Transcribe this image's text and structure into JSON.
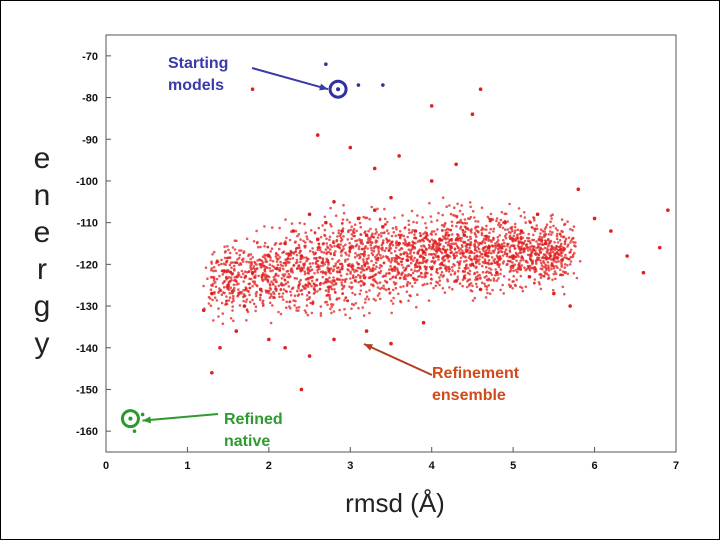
{
  "chart_data": {
    "type": "scatter",
    "xlabel": "rmsd (Å)",
    "ylabel_letters": [
      "e",
      "n",
      "e",
      "r",
      "g",
      "y"
    ],
    "xlim": [
      0,
      7
    ],
    "ylim": [
      -165,
      -65
    ],
    "xticks": [
      "0",
      "1",
      "2",
      "3",
      "4",
      "5",
      "6",
      "7"
    ],
    "yticks": [
      "-70",
      "-80",
      "-90",
      "-100",
      "-110",
      "-120",
      "-130",
      "-140",
      "-150",
      "-160"
    ],
    "grid": false,
    "series": [
      {
        "name": "Refinement ensemble",
        "color": "#e02020",
        "points": [
          [
            1.2,
            -131
          ],
          [
            1.3,
            -127
          ],
          [
            1.5,
            -125
          ],
          [
            1.6,
            -136
          ],
          [
            1.4,
            -140
          ],
          [
            1.7,
            -130
          ],
          [
            1.8,
            -122
          ],
          [
            1.9,
            -126
          ],
          [
            2.0,
            -118
          ],
          [
            2.1,
            -121
          ],
          [
            2.2,
            -115
          ],
          [
            2.3,
            -112
          ],
          [
            2.4,
            -118
          ],
          [
            2.5,
            -108
          ],
          [
            2.6,
            -114
          ],
          [
            2.7,
            -110
          ],
          [
            2.8,
            -105
          ],
          [
            2.9,
            -112
          ],
          [
            3.0,
            -116
          ],
          [
            3.1,
            -109
          ],
          [
            3.2,
            -113
          ],
          [
            3.3,
            -107
          ],
          [
            3.4,
            -111
          ],
          [
            3.5,
            -104
          ],
          [
            3.6,
            -115
          ],
          [
            3.7,
            -119
          ],
          [
            3.8,
            -112
          ],
          [
            3.9,
            -117
          ],
          [
            4.0,
            -121
          ],
          [
            4.1,
            -114
          ],
          [
            4.2,
            -118
          ],
          [
            4.3,
            -124
          ],
          [
            4.4,
            -113
          ],
          [
            4.5,
            -120
          ],
          [
            4.6,
            -126
          ],
          [
            4.7,
            -116
          ],
          [
            4.8,
            -122
          ],
          [
            4.9,
            -110
          ],
          [
            5.0,
            -118
          ],
          [
            5.1,
            -112
          ],
          [
            5.2,
            -123
          ],
          [
            5.3,
            -108
          ],
          [
            5.4,
            -115
          ],
          [
            5.5,
            -127
          ],
          [
            5.6,
            -119
          ],
          [
            5.7,
            -130
          ],
          [
            5.8,
            -102
          ],
          [
            6.0,
            -109
          ],
          [
            6.2,
            -112
          ],
          [
            6.4,
            -118
          ],
          [
            6.6,
            -122
          ],
          [
            6.8,
            -116
          ],
          [
            6.9,
            -107
          ],
          [
            2.0,
            -138
          ],
          [
            2.2,
            -140
          ],
          [
            2.5,
            -142
          ],
          [
            2.8,
            -138
          ],
          [
            3.2,
            -136
          ],
          [
            3.5,
            -139
          ],
          [
            3.9,
            -134
          ],
          [
            2.6,
            -89
          ],
          [
            3.0,
            -92
          ],
          [
            3.3,
            -97
          ],
          [
            3.6,
            -94
          ],
          [
            4.0,
            -100
          ],
          [
            4.3,
            -96
          ],
          [
            4.5,
            -84
          ],
          [
            4.6,
            -78
          ],
          [
            4.0,
            -82
          ],
          [
            1.8,
            -78
          ],
          [
            2.4,
            -150
          ],
          [
            1.3,
            -146
          ]
        ]
      },
      {
        "name": "Starting models",
        "color": "#3030a0",
        "points": [
          [
            2.7,
            -72
          ],
          [
            2.85,
            -78
          ],
          [
            3.1,
            -77
          ],
          [
            3.4,
            -77
          ]
        ]
      },
      {
        "name": "Refined native",
        "color": "#2a9a2a",
        "points": [
          [
            0.3,
            -157
          ],
          [
            0.45,
            -156
          ],
          [
            0.35,
            -160
          ]
        ]
      }
    ],
    "annotations": [
      {
        "id": "starting",
        "lines": [
          "Starting",
          "models"
        ],
        "color": "#3a3aa8"
      },
      {
        "id": "refinement",
        "lines": [
          "Refinement",
          "ensemble"
        ],
        "color": "#d24a1a"
      },
      {
        "id": "native",
        "lines": [
          "Refined",
          "native"
        ],
        "color": "#2f9a2f"
      }
    ]
  }
}
